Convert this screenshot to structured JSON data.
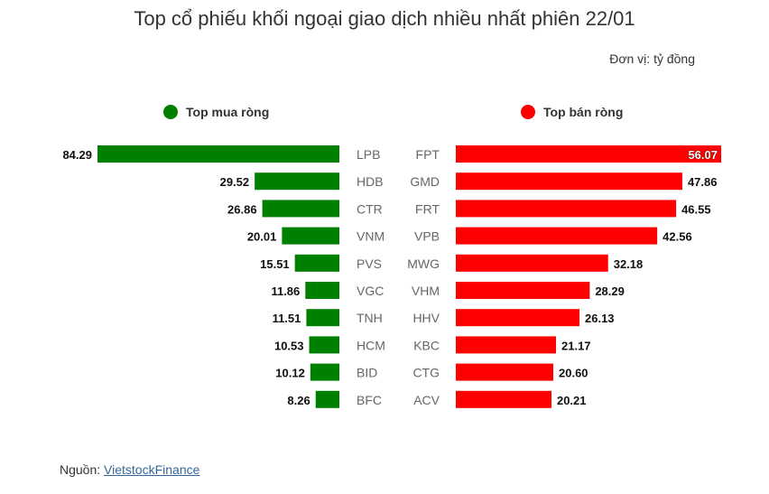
{
  "title": "Top cổ phiếu khối ngoại giao dịch nhiều nhất phiên 22/01",
  "unit": "Đơn vị: tỷ đồng",
  "source": {
    "label": "Nguồn: ",
    "link_text": "VietstockFinance"
  },
  "colors": {
    "buy": "#008000",
    "sell": "#ff0000"
  },
  "chart_data": {
    "type": "bar",
    "legend_placement": "top",
    "grid": false,
    "buy": {
      "name": "Top mua ròng",
      "categories": [
        "LPB",
        "HDB",
        "CTR",
        "VNM",
        "PVS",
        "VGC",
        "TNH",
        "HCM",
        "BID",
        "BFC"
      ],
      "values": [
        84.29,
        29.52,
        26.86,
        20.01,
        15.51,
        11.86,
        11.51,
        10.53,
        10.12,
        8.26
      ],
      "labels": [
        "84.29",
        "29.52",
        "26.86",
        "20.01",
        "15.51",
        "11.86",
        "11.51",
        "10.53",
        "10.12",
        "8.26"
      ]
    },
    "sell": {
      "name": "Top bán ròng",
      "categories": [
        "FPT",
        "GMD",
        "FRT",
        "VPB",
        "MWG",
        "VHM",
        "HHV",
        "KBC",
        "CTG",
        "ACV"
      ],
      "values": [
        56.07,
        47.86,
        46.55,
        42.56,
        32.18,
        28.29,
        26.13,
        21.17,
        20.6,
        20.21
      ],
      "labels": [
        "56.07",
        "47.86",
        "46.55",
        "42.56",
        "32.18",
        "28.29",
        "26.13",
        "21.17",
        "20.60",
        "20.21"
      ]
    }
  }
}
